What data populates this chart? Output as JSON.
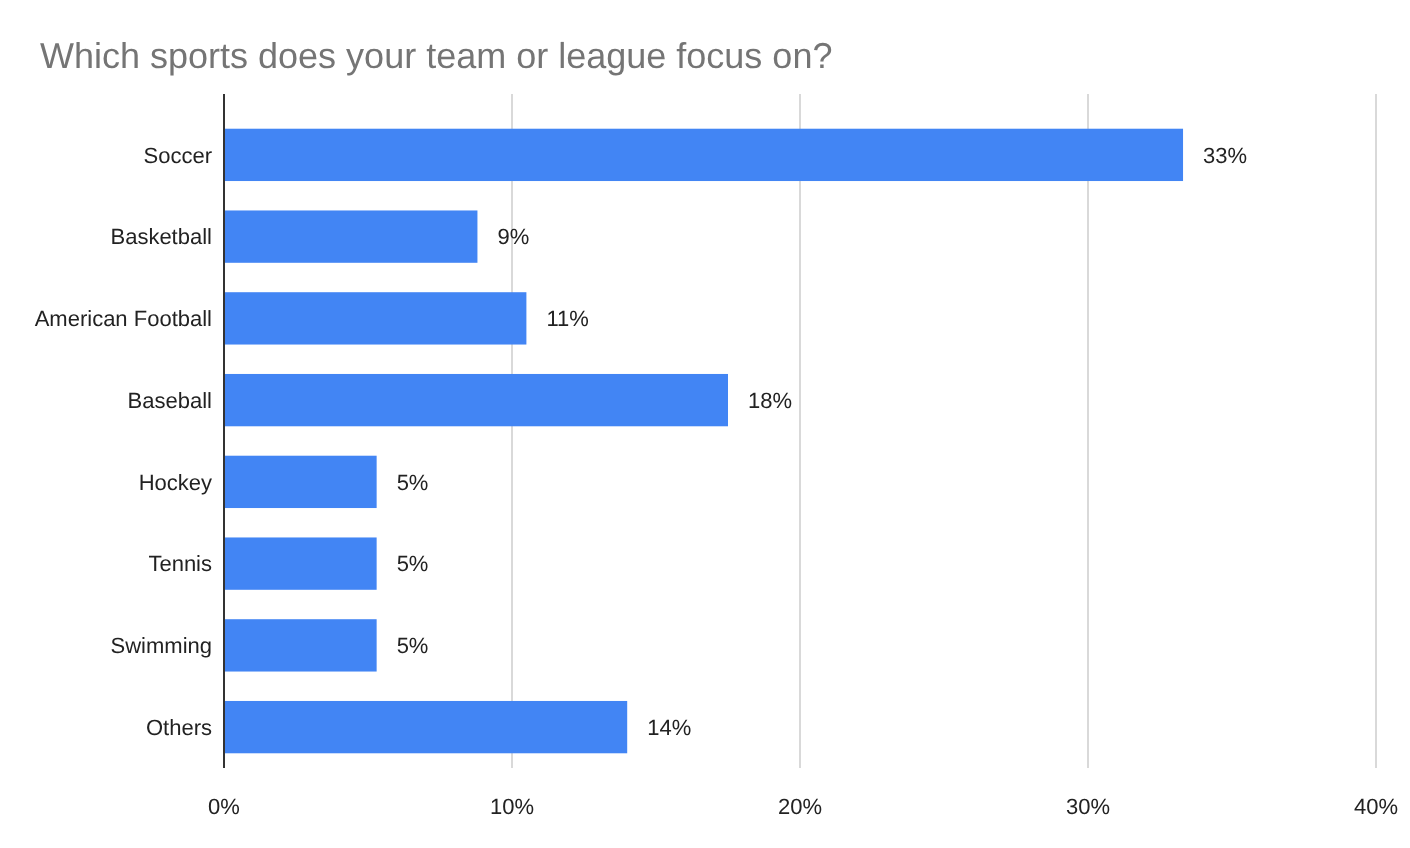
{
  "chart_data": {
    "type": "bar",
    "orientation": "horizontal",
    "title": "Which sports does your team or league focus on?",
    "categories": [
      "Soccer",
      "Basketball",
      "American Football",
      "Baseball",
      "Hockey",
      "Tennis",
      "Swimming",
      "Others"
    ],
    "values": [
      33.3,
      8.8,
      10.5,
      17.5,
      5.3,
      5.3,
      5.3,
      14.0
    ],
    "value_labels": [
      "33%",
      "9%",
      "11%",
      "18%",
      "5%",
      "5%",
      "5%",
      "14%"
    ],
    "color": "#4285f4",
    "xlim": [
      0,
      40
    ],
    "xticks": [
      {
        "value": 0,
        "label": "0%"
      },
      {
        "value": 10,
        "label": "10%"
      },
      {
        "value": 20,
        "label": "20%"
      },
      {
        "value": 30,
        "label": "30%"
      },
      {
        "value": 40,
        "label": "40%"
      }
    ],
    "grid": "x"
  }
}
